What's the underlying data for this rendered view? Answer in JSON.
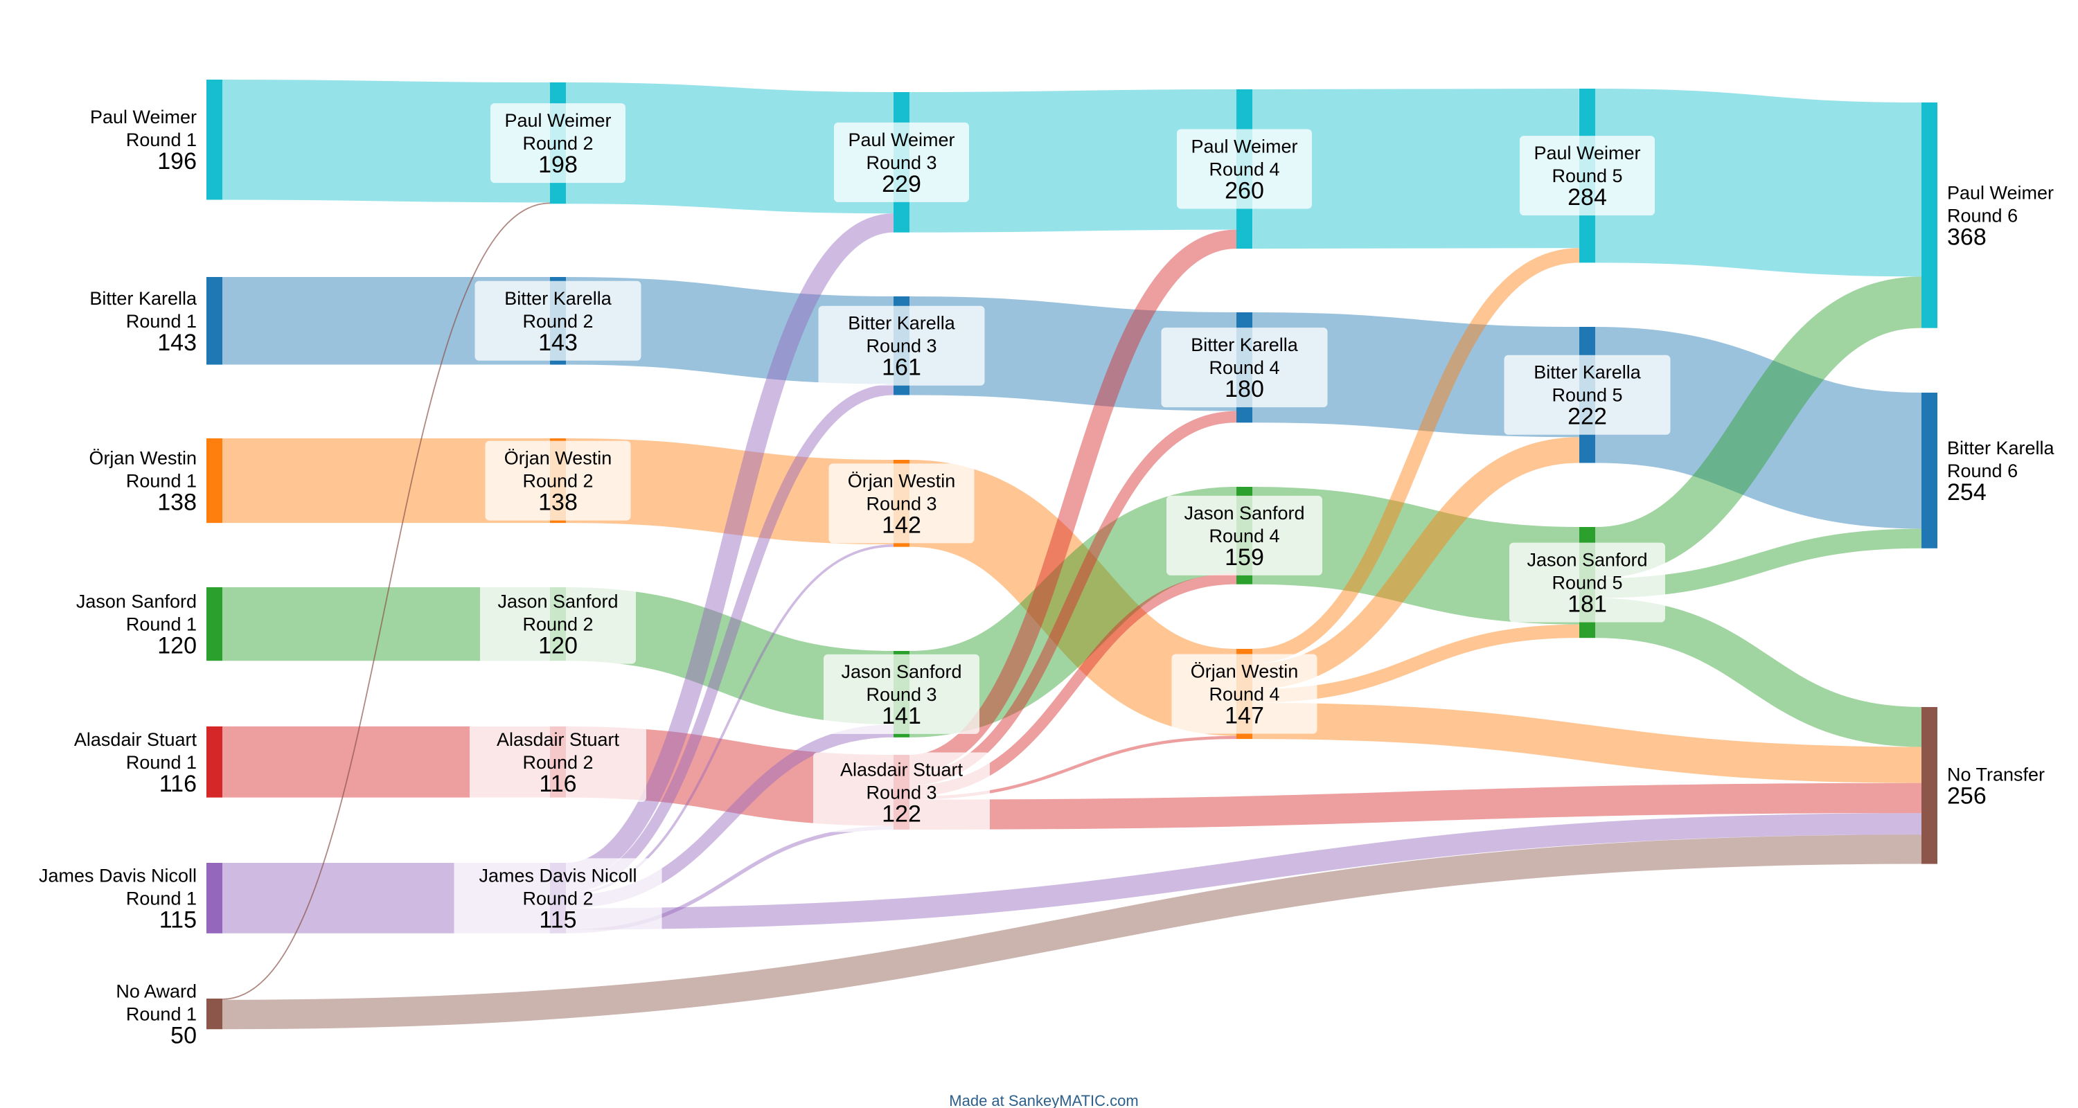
{
  "chart_data": {
    "type": "sankey",
    "title": "",
    "credit": "Made at SankeyMATIC.com",
    "colors": {
      "Paul Weimer": "#17becf",
      "Bitter Karella": "#1f77b4",
      "Örjan Westin": "#ff7f0e",
      "Jason Sanford": "#2ca02c",
      "Alasdair Stuart": "#d62728",
      "James Davis Nicoll": "#9467bd",
      "No Award": "#8c564b",
      "No Transfer": "#8c564b"
    },
    "nodes": [
      {
        "id": "pw1",
        "name": "Paul Weimer",
        "round": "Round 1",
        "value": 196
      },
      {
        "id": "bk1",
        "name": "Bitter Karella",
        "round": "Round 1",
        "value": 143
      },
      {
        "id": "ow1",
        "name": "Örjan Westin",
        "round": "Round 1",
        "value": 138
      },
      {
        "id": "js1",
        "name": "Jason Sanford",
        "round": "Round 1",
        "value": 120
      },
      {
        "id": "as1",
        "name": "Alasdair Stuart",
        "round": "Round 1",
        "value": 116
      },
      {
        "id": "jd1",
        "name": "James Davis Nicoll",
        "round": "Round 1",
        "value": 115
      },
      {
        "id": "na1",
        "name": "No Award",
        "round": "Round 1",
        "value": 50
      },
      {
        "id": "pw2",
        "name": "Paul Weimer",
        "round": "Round 2",
        "value": 198
      },
      {
        "id": "bk2",
        "name": "Bitter Karella",
        "round": "Round 2",
        "value": 143
      },
      {
        "id": "ow2",
        "name": "Örjan Westin",
        "round": "Round 2",
        "value": 138
      },
      {
        "id": "js2",
        "name": "Jason Sanford",
        "round": "Round 2",
        "value": 120
      },
      {
        "id": "as2",
        "name": "Alasdair Stuart",
        "round": "Round 2",
        "value": 116
      },
      {
        "id": "jd2",
        "name": "James Davis Nicoll",
        "round": "Round 2",
        "value": 115
      },
      {
        "id": "pw3",
        "name": "Paul Weimer",
        "round": "Round 3",
        "value": 229
      },
      {
        "id": "bk3",
        "name": "Bitter Karella",
        "round": "Round 3",
        "value": 161
      },
      {
        "id": "ow3",
        "name": "Örjan Westin",
        "round": "Round 3",
        "value": 142
      },
      {
        "id": "js3",
        "name": "Jason Sanford",
        "round": "Round 3",
        "value": 141
      },
      {
        "id": "as3",
        "name": "Alasdair Stuart",
        "round": "Round 3",
        "value": 122
      },
      {
        "id": "pw4",
        "name": "Paul Weimer",
        "round": "Round 4",
        "value": 260
      },
      {
        "id": "bk4",
        "name": "Bitter Karella",
        "round": "Round 4",
        "value": 180
      },
      {
        "id": "js4",
        "name": "Jason Sanford",
        "round": "Round 4",
        "value": 159
      },
      {
        "id": "ow4",
        "name": "Örjan Westin",
        "round": "Round 4",
        "value": 147
      },
      {
        "id": "pw5",
        "name": "Paul Weimer",
        "round": "Round 5",
        "value": 284
      },
      {
        "id": "bk5",
        "name": "Bitter Karella",
        "round": "Round 5",
        "value": 222
      },
      {
        "id": "js5",
        "name": "Jason Sanford",
        "round": "Round 5",
        "value": 181
      },
      {
        "id": "pw6",
        "name": "Paul Weimer",
        "round": "Round 6",
        "value": 368
      },
      {
        "id": "bk6",
        "name": "Bitter Karella",
        "round": "Round 6",
        "value": 254
      },
      {
        "id": "nt",
        "name": "No Transfer",
        "round": "",
        "value": 256
      }
    ],
    "links": [
      {
        "source": "pw1",
        "target": "pw2",
        "value": 196
      },
      {
        "source": "bk1",
        "target": "bk2",
        "value": 143
      },
      {
        "source": "ow1",
        "target": "ow2",
        "value": 138
      },
      {
        "source": "js1",
        "target": "js2",
        "value": 120
      },
      {
        "source": "as1",
        "target": "as2",
        "value": 116
      },
      {
        "source": "jd1",
        "target": "jd2",
        "value": 115
      },
      {
        "source": "na1",
        "target": "pw2",
        "value": 2
      },
      {
        "source": "na1",
        "target": "nt",
        "value": 48
      },
      {
        "source": "pw2",
        "target": "pw3",
        "value": 198
      },
      {
        "source": "bk2",
        "target": "bk3",
        "value": 143
      },
      {
        "source": "ow2",
        "target": "ow3",
        "value": 138
      },
      {
        "source": "js2",
        "target": "js3",
        "value": 120
      },
      {
        "source": "as2",
        "target": "as3",
        "value": 116
      },
      {
        "source": "jd2",
        "target": "pw3",
        "value": 31
      },
      {
        "source": "jd2",
        "target": "bk3",
        "value": 18
      },
      {
        "source": "jd2",
        "target": "ow3",
        "value": 4
      },
      {
        "source": "jd2",
        "target": "js3",
        "value": 21
      },
      {
        "source": "jd2",
        "target": "as3",
        "value": 6
      },
      {
        "source": "jd2",
        "target": "nt",
        "value": 35
      },
      {
        "source": "pw3",
        "target": "pw4",
        "value": 229
      },
      {
        "source": "bk3",
        "target": "bk4",
        "value": 161
      },
      {
        "source": "ow3",
        "target": "ow4",
        "value": 142
      },
      {
        "source": "js3",
        "target": "js4",
        "value": 141
      },
      {
        "source": "as3",
        "target": "pw4",
        "value": 31
      },
      {
        "source": "as3",
        "target": "bk4",
        "value": 19
      },
      {
        "source": "as3",
        "target": "js4",
        "value": 18
      },
      {
        "source": "as3",
        "target": "ow4",
        "value": 5
      },
      {
        "source": "as3",
        "target": "nt",
        "value": 49
      },
      {
        "source": "pw4",
        "target": "pw5",
        "value": 260
      },
      {
        "source": "bk4",
        "target": "bk5",
        "value": 180
      },
      {
        "source": "js4",
        "target": "js5",
        "value": 159
      },
      {
        "source": "ow4",
        "target": "pw5",
        "value": 24
      },
      {
        "source": "ow4",
        "target": "bk5",
        "value": 42
      },
      {
        "source": "ow4",
        "target": "js5",
        "value": 22
      },
      {
        "source": "ow4",
        "target": "nt",
        "value": 59
      },
      {
        "source": "pw5",
        "target": "pw6",
        "value": 284
      },
      {
        "source": "bk5",
        "target": "bk6",
        "value": 222
      },
      {
        "source": "js5",
        "target": "pw6",
        "value": 84
      },
      {
        "source": "js5",
        "target": "bk6",
        "value": 32
      },
      {
        "source": "js5",
        "target": "nt",
        "value": 65
      }
    ]
  }
}
